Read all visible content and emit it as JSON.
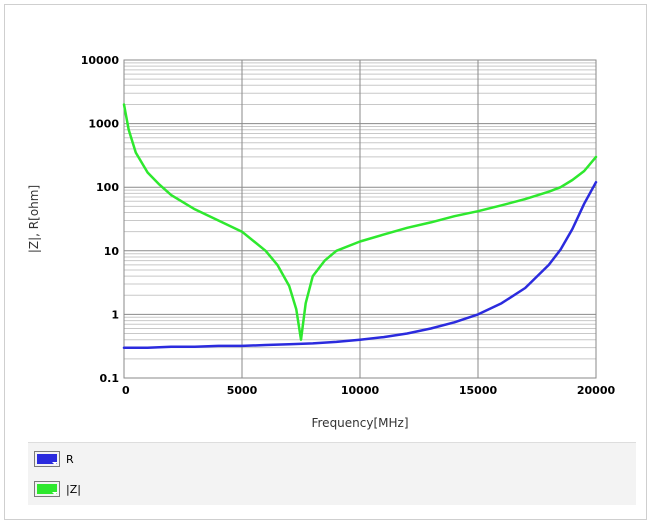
{
  "chart_data": {
    "type": "line",
    "xlabel": "Frequency[MHz]",
    "ylabel": "|Z|, R[ohm]",
    "xlim": [
      0,
      20000
    ],
    "ylim": [
      0.1,
      10000
    ],
    "yscale": "log",
    "grid": true,
    "legend": "bottom",
    "x_ticks": [
      "0",
      "5000",
      "10000",
      "15000",
      "20000"
    ],
    "y_ticks": [
      "0.1",
      "1",
      "10",
      "100",
      "1000",
      "10000"
    ],
    "series": [
      {
        "name": "R",
        "color": "#2b2bde",
        "x": [
          0,
          1000,
          2000,
          3000,
          4000,
          5000,
          6000,
          7000,
          8000,
          9000,
          10000,
          11000,
          12000,
          13000,
          14000,
          15000,
          16000,
          17000,
          18000,
          18500,
          19000,
          19500,
          20000
        ],
        "y": [
          0.3,
          0.3,
          0.31,
          0.31,
          0.32,
          0.32,
          0.33,
          0.34,
          0.35,
          0.37,
          0.4,
          0.44,
          0.5,
          0.6,
          0.75,
          1.0,
          1.5,
          2.6,
          6.0,
          10.5,
          22,
          55,
          120
        ]
      },
      {
        "name": "|Z|",
        "color": "#2ee82e",
        "x": [
          0,
          200,
          500,
          1000,
          1500,
          2000,
          3000,
          4000,
          5000,
          6000,
          6500,
          7000,
          7300,
          7500,
          7700,
          8000,
          8500,
          9000,
          10000,
          11000,
          12000,
          13000,
          14000,
          15000,
          16000,
          17000,
          18000,
          18500,
          19000,
          19500,
          20000
        ],
        "y": [
          2000,
          800,
          350,
          170,
          110,
          75,
          45,
          30,
          20,
          10,
          6,
          2.8,
          1.2,
          0.4,
          1.5,
          4,
          7,
          10,
          14,
          18,
          23,
          28,
          35,
          42,
          52,
          65,
          85,
          100,
          130,
          180,
          300
        ]
      }
    ]
  }
}
